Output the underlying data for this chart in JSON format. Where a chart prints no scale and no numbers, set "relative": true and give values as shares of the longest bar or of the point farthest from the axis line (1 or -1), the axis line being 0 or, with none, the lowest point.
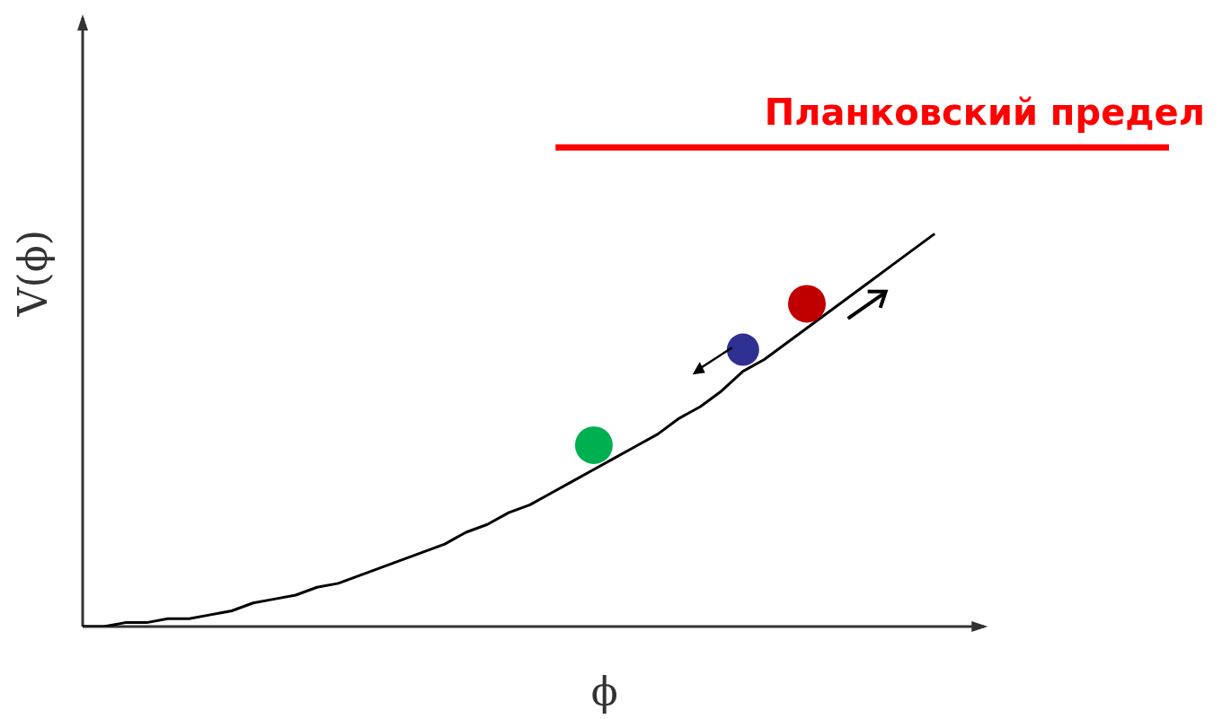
{
  "chart_data": {
    "type": "line",
    "relative": true,
    "xlabel": "ϕ",
    "ylabel": "V(ϕ)",
    "categories": [
      null,
      null,
      null,
      null,
      null,
      null,
      null,
      null,
      null,
      null,
      null,
      null,
      null,
      null,
      null,
      null,
      null,
      null,
      null,
      null,
      null,
      null,
      null,
      null,
      null,
      null,
      null,
      null,
      null,
      null,
      null,
      null,
      null,
      null,
      null,
      null,
      null,
      null,
      null,
      null,
      null
    ],
    "series": [
      {
        "color": "#000000",
        "values": [
          0,
          0,
          0.01,
          0.01,
          0.02,
          0.02,
          0.03,
          0.04,
          0.06,
          0.07,
          0.08,
          0.1,
          0.11,
          0.13,
          0.15,
          0.17,
          0.19,
          0.21,
          0.24,
          0.26,
          0.29,
          0.31,
          0.34,
          0.37,
          0.4,
          0.43,
          0.46,
          0.49,
          0.53,
          0.56,
          0.6,
          0.65,
          0.68,
          0.72,
          0.76,
          0.8,
          0.84,
          0.88,
          0.92,
          0.96,
          1
        ]
      }
    ],
    "ref_lines": [
      {
        "axis": "y",
        "value": 1.22,
        "label": "Планковский предел",
        "color": "#ff0000"
      }
    ]
  }
}
